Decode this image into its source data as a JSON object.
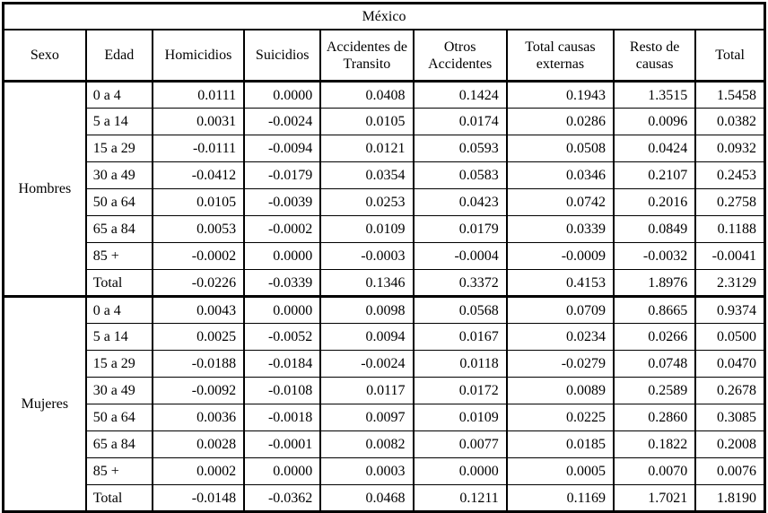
{
  "title": "México",
  "colors": {
    "border": "#000000",
    "background": "#ffffff",
    "text": "#000000"
  },
  "chart_data": {
    "type": "table",
    "title": "México",
    "columns": [
      "Sexo",
      "Edad",
      "Homicidios",
      "Suicidios",
      "Accidentes de Transito",
      "Otros Accidentes",
      "Total causas externas",
      "Resto de causas",
      "Total"
    ],
    "sections": [
      {
        "sexo": "Hombres",
        "rows": [
          {
            "edad": "0 a 4",
            "values": [
              "0.0111",
              "0.0000",
              "0.0408",
              "0.1424",
              "0.1943",
              "1.3515",
              "1.5458"
            ]
          },
          {
            "edad": "5 a 14",
            "values": [
              "0.0031",
              "-0.0024",
              "0.0105",
              "0.0174",
              "0.0286",
              "0.0096",
              "0.0382"
            ]
          },
          {
            "edad": "15 a 29",
            "values": [
              "-0.0111",
              "-0.0094",
              "0.0121",
              "0.0593",
              "0.0508",
              "0.0424",
              "0.0932"
            ]
          },
          {
            "edad": "30 a 49",
            "values": [
              "-0.0412",
              "-0.0179",
              "0.0354",
              "0.0583",
              "0.0346",
              "0.2107",
              "0.2453"
            ]
          },
          {
            "edad": "50 a 64",
            "values": [
              "0.0105",
              "-0.0039",
              "0.0253",
              "0.0423",
              "0.0742",
              "0.2016",
              "0.2758"
            ]
          },
          {
            "edad": "65 a 84",
            "values": [
              "0.0053",
              "-0.0002",
              "0.0109",
              "0.0179",
              "0.0339",
              "0.0849",
              "0.1188"
            ]
          },
          {
            "edad": "85 +",
            "values": [
              "-0.0002",
              "0.0000",
              "-0.0003",
              "-0.0004",
              "-0.0009",
              "-0.0032",
              "-0.0041"
            ]
          },
          {
            "edad": "Total",
            "values": [
              "-0.0226",
              "-0.0339",
              "0.1346",
              "0.3372",
              "0.4153",
              "1.8976",
              "2.3129"
            ]
          }
        ]
      },
      {
        "sexo": "Mujeres",
        "rows": [
          {
            "edad": "0 a 4",
            "values": [
              "0.0043",
              "0.0000",
              "0.0098",
              "0.0568",
              "0.0709",
              "0.8665",
              "0.9374"
            ]
          },
          {
            "edad": "5 a 14",
            "values": [
              "0.0025",
              "-0.0052",
              "0.0094",
              "0.0167",
              "0.0234",
              "0.0266",
              "0.0500"
            ]
          },
          {
            "edad": "15 a 29",
            "values": [
              "-0.0188",
              "-0.0184",
              "-0.0024",
              "0.0118",
              "-0.0279",
              "0.0748",
              "0.0470"
            ]
          },
          {
            "edad": "30 a 49",
            "values": [
              "-0.0092",
              "-0.0108",
              "0.0117",
              "0.0172",
              "0.0089",
              "0.2589",
              "0.2678"
            ]
          },
          {
            "edad": "50 a 64",
            "values": [
              "0.0036",
              "-0.0018",
              "0.0097",
              "0.0109",
              "0.0225",
              "0.2860",
              "0.3085"
            ]
          },
          {
            "edad": "65 a 84",
            "values": [
              "0.0028",
              "-0.0001",
              "0.0082",
              "0.0077",
              "0.0185",
              "0.1822",
              "0.2008"
            ]
          },
          {
            "edad": "85 +",
            "values": [
              "0.0002",
              "0.0000",
              "0.0003",
              "0.0000",
              "0.0005",
              "0.0070",
              "0.0076"
            ]
          },
          {
            "edad": "Total",
            "values": [
              "-0.0148",
              "-0.0362",
              "0.0468",
              "0.1211",
              "0.1169",
              "1.7021",
              "1.8190"
            ]
          }
        ]
      }
    ]
  }
}
